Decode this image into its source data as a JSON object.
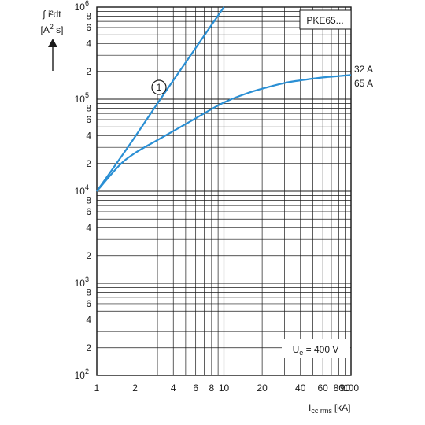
{
  "chart_data": {
    "type": "line",
    "title": "",
    "ylabel_line1": "∫ i²dt",
    "ylabel_line2_pre": "[A",
    "ylabel_line2_sup": "2",
    "ylabel_line2_post": " s]",
    "xlabel_main": "I",
    "xlabel_sub": "cc rms",
    "xlabel_unit": "[kA]",
    "x_scale": "log",
    "y_scale": "log",
    "xlim": [
      1,
      100
    ],
    "ylim": [
      100,
      1000000
    ],
    "grid": true,
    "x_ticks": [
      {
        "value": 1,
        "label": "1"
      },
      {
        "value": 2,
        "label": "2"
      },
      {
        "value": 4,
        "label": "4"
      },
      {
        "value": 6,
        "label": "6"
      },
      {
        "value": 8,
        "label": "8"
      },
      {
        "value": 10,
        "label": "10"
      },
      {
        "value": 20,
        "label": "20"
      },
      {
        "value": 40,
        "label": "40"
      },
      {
        "value": 60,
        "label": "60"
      },
      {
        "value": 80,
        "label": "80"
      },
      {
        "value": 90,
        "label": "90"
      },
      {
        "value": 100,
        "label": "100"
      }
    ],
    "y_ticks": [
      {
        "value": 100,
        "base": "10",
        "exp": "2"
      },
      {
        "value": 200,
        "label": "2"
      },
      {
        "value": 400,
        "label": "4"
      },
      {
        "value": 600,
        "label": "6"
      },
      {
        "value": 800,
        "label": "8"
      },
      {
        "value": 1000,
        "base": "10",
        "exp": "3"
      },
      {
        "value": 2000,
        "label": "2"
      },
      {
        "value": 4000,
        "label": "4"
      },
      {
        "value": 6000,
        "label": "6"
      },
      {
        "value": 8000,
        "label": "8"
      },
      {
        "value": 10000,
        "base": "10",
        "exp": "4"
      },
      {
        "value": 20000,
        "label": "2"
      },
      {
        "value": 40000,
        "label": "4"
      },
      {
        "value": 60000,
        "label": "6"
      },
      {
        "value": 80000,
        "label": "8"
      },
      {
        "value": 100000,
        "base": "10",
        "exp": "5"
      },
      {
        "value": 200000,
        "label": "2"
      },
      {
        "value": 400000,
        "label": "4"
      },
      {
        "value": 600000,
        "label": "6"
      },
      {
        "value": 800000,
        "label": "8"
      },
      {
        "value": 1000000,
        "base": "10",
        "exp": "6"
      }
    ],
    "series": [
      {
        "marker": "1",
        "color": "#2a8fd4",
        "x": [
          1,
          1.5,
          2,
          3,
          4,
          6,
          8,
          10
        ],
        "y": [
          10000,
          22000,
          39000,
          90000,
          160000,
          360000,
          640000,
          1000000
        ]
      },
      {
        "name": "32 A\n65 A",
        "color": "#2a8fd4",
        "x": [
          1,
          1.5,
          2,
          3,
          4,
          6,
          8,
          10,
          15,
          20,
          30,
          40,
          60,
          80,
          100
        ],
        "y": [
          10000,
          19000,
          26000,
          36000,
          45000,
          62000,
          78000,
          92000,
          115000,
          130000,
          150000,
          160000,
          172000,
          178000,
          183000
        ]
      }
    ],
    "labels": {
      "curve_marker": "1",
      "curve2_label_a": "32 A",
      "curve2_label_b": "65 A",
      "box_label": "PKE65...",
      "voltage_pre": "U",
      "voltage_sub": "e",
      "voltage_post": " = 400 V"
    }
  }
}
